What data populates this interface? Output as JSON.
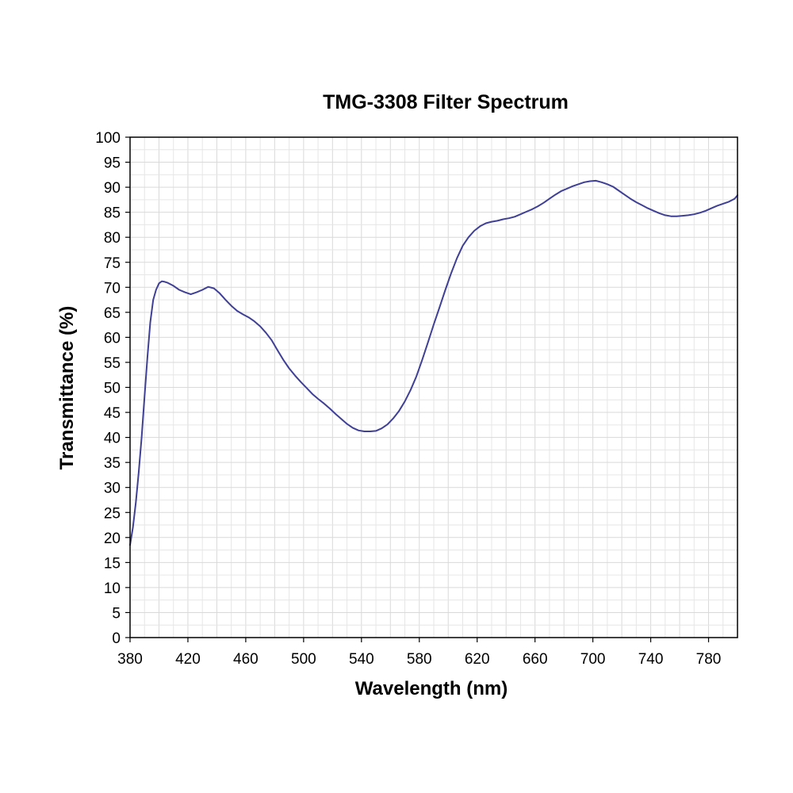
{
  "chart_data": {
    "type": "line",
    "title": "TMG-3308 Filter Spectrum",
    "xlabel": "Wavelength (nm)",
    "ylabel": "Transmittance (%)",
    "xlim": [
      380,
      800
    ],
    "ylim": [
      0,
      100
    ],
    "x_ticks": [
      380,
      420,
      460,
      500,
      540,
      580,
      620,
      660,
      700,
      740,
      780
    ],
    "y_ticks": [
      0,
      5,
      10,
      15,
      20,
      25,
      30,
      35,
      40,
      45,
      50,
      55,
      60,
      65,
      70,
      75,
      80,
      85,
      90,
      95,
      100
    ],
    "grid": true,
    "legend": "none",
    "series": [
      {
        "color": "#3f3f96",
        "x": [
          380,
          382,
          384,
          386,
          388,
          390,
          392,
          394,
          396,
          398,
          400,
          402,
          404,
          406,
          410,
          414,
          418,
          422,
          426,
          430,
          434,
          438,
          442,
          446,
          450,
          454,
          458,
          462,
          466,
          470,
          474,
          478,
          482,
          486,
          490,
          494,
          498,
          502,
          506,
          510,
          514,
          518,
          522,
          526,
          530,
          534,
          538,
          542,
          546,
          550,
          554,
          558,
          562,
          566,
          570,
          574,
          578,
          582,
          586,
          590,
          594,
          598,
          602,
          606,
          610,
          614,
          618,
          622,
          626,
          630,
          634,
          638,
          642,
          646,
          650,
          654,
          658,
          662,
          666,
          670,
          674,
          678,
          682,
          686,
          690,
          694,
          698,
          702,
          706,
          710,
          714,
          718,
          722,
          726,
          730,
          734,
          738,
          742,
          746,
          750,
          754,
          758,
          762,
          766,
          770,
          774,
          778,
          782,
          786,
          790,
          794,
          798,
          800
        ],
        "y": [
          18.5,
          22,
          27,
          33,
          40,
          48,
          56,
          63,
          67.5,
          69.5,
          70.8,
          71.2,
          71.1,
          70.9,
          70.3,
          69.5,
          69.0,
          68.6,
          69.0,
          69.5,
          70.1,
          69.8,
          68.8,
          67.5,
          66.3,
          65.3,
          64.6,
          64.0,
          63.2,
          62.2,
          60.9,
          59.4,
          57.4,
          55.5,
          53.8,
          52.4,
          51.1,
          49.9,
          48.7,
          47.7,
          46.8,
          45.8,
          44.7,
          43.7,
          42.7,
          41.9,
          41.4,
          41.2,
          41.2,
          41.3,
          41.8,
          42.6,
          43.8,
          45.3,
          47.2,
          49.5,
          52.2,
          55.5,
          59.0,
          62.6,
          66.0,
          69.5,
          72.8,
          75.8,
          78.3,
          80.0,
          81.3,
          82.2,
          82.8,
          83.1,
          83.3,
          83.6,
          83.8,
          84.1,
          84.6,
          85.1,
          85.6,
          86.2,
          86.9,
          87.7,
          88.5,
          89.2,
          89.7,
          90.2,
          90.6,
          91.0,
          91.2,
          91.3,
          91.0,
          90.6,
          90.1,
          89.3,
          88.5,
          87.7,
          87.0,
          86.4,
          85.8,
          85.3,
          84.8,
          84.4,
          84.2,
          84.2,
          84.3,
          84.4,
          84.6,
          84.9,
          85.3,
          85.8,
          86.3,
          86.7,
          87.1,
          87.7,
          88.4
        ]
      }
    ]
  }
}
